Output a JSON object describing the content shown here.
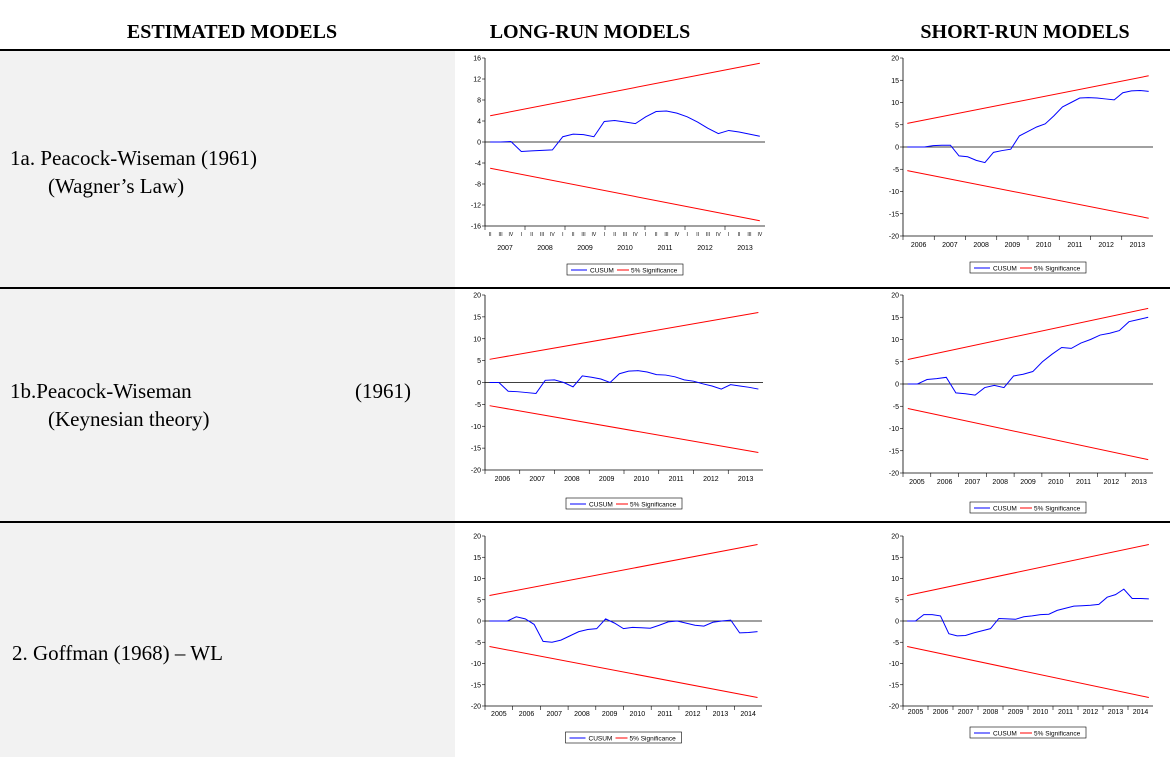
{
  "table": {
    "headers": [
      "ESTIMATED MODELS",
      "LONG-RUN MODELS",
      "SHORT-RUN MODELS"
    ],
    "rows": [
      {
        "label_lines": [
          "1a. Peacock-Wiseman (1961)",
          "(Wagner’s Law)"
        ],
        "long_run": {
          "type": "line",
          "ylim": [
            -16,
            16
          ],
          "yticks": [
            -16,
            -12,
            -8,
            -4,
            0,
            4,
            8,
            12,
            16
          ],
          "categories": [
            "2007",
            "2008",
            "2009",
            "2010",
            "2011",
            "2012",
            "2013"
          ],
          "quarter_labels": [
            "II",
            "III",
            "IV",
            "I",
            "II",
            "III",
            "IV",
            "I",
            "II",
            "III",
            "IV",
            "I",
            "II",
            "III",
            "IV",
            "I",
            "II",
            "III",
            "IV",
            "I",
            "II",
            "III",
            "IV",
            "I",
            "II",
            "III",
            "IV"
          ],
          "series": [
            {
              "name": "CUSUM",
              "color": "#0000ff",
              "values": [
                0,
                0,
                0.1,
                -1.8,
                -1.7,
                -1.6,
                -1.5,
                1,
                1.5,
                1.4,
                1,
                3.9,
                4.1,
                3.8,
                3.5,
                4.8,
                5.8,
                5.9,
                5.5,
                4.8,
                3.8,
                2.6,
                1.6,
                2.2,
                1.9,
                1.5,
                1.1
              ]
            },
            {
              "name": "5% Significance",
              "color": "#ff0000",
              "upper": [
                5,
                15
              ],
              "lower": [
                -5,
                -15
              ]
            }
          ]
        },
        "short_run": {
          "type": "line",
          "ylim": [
            -20,
            20
          ],
          "yticks": [
            -20,
            -15,
            -10,
            -5,
            0,
            5,
            10,
            15,
            20
          ],
          "categories": [
            "2006",
            "2007",
            "2008",
            "2009",
            "2010",
            "2011",
            "2012",
            "2013"
          ],
          "series": [
            {
              "name": "CUSUM",
              "color": "#0000ff",
              "values": [
                0,
                0,
                0,
                0.3,
                0.4,
                0.4,
                -2,
                -2.2,
                -3,
                -3.5,
                -1.2,
                -0.8,
                -0.5,
                2.5,
                3.5,
                4.5,
                5.2,
                7,
                9,
                10,
                11,
                11.1,
                11,
                10.8,
                10.6,
                12.2,
                12.6,
                12.7,
                12.5
              ]
            },
            {
              "name": "5% Significance",
              "color": "#ff0000",
              "upper": [
                5.3,
                16
              ],
              "lower": [
                -5.3,
                -16
              ]
            }
          ]
        }
      },
      {
        "label_lines": [
          "1b.Peacock-Wiseman",
          "(1961)",
          "(Keynesian theory)"
        ],
        "long_run": {
          "type": "line",
          "ylim": [
            -20,
            20
          ],
          "yticks": [
            -20,
            -15,
            -10,
            -5,
            0,
            5,
            10,
            15,
            20
          ],
          "categories": [
            "2006",
            "2007",
            "2008",
            "2009",
            "2010",
            "2011",
            "2012",
            "2013"
          ],
          "series": [
            {
              "name": "CUSUM",
              "color": "#0000ff",
              "values": [
                0,
                0,
                -2,
                -2.1,
                -2.3,
                -2.5,
                0.5,
                0.6,
                0,
                -1,
                1.5,
                1.2,
                0.8,
                0,
                2,
                2.6,
                2.7,
                2.4,
                1.8,
                1.7,
                1.3,
                0.6,
                0.3,
                -0.3,
                -0.8,
                -1.5,
                -0.5,
                -0.8,
                -1.1,
                -1.5
              ]
            },
            {
              "name": "5% Significance",
              "color": "#ff0000",
              "upper": [
                5.3,
                16
              ],
              "lower": [
                -5.3,
                -16
              ]
            }
          ]
        },
        "short_run": {
          "type": "line",
          "ylim": [
            -20,
            20
          ],
          "yticks": [
            -20,
            -15,
            -10,
            -5,
            0,
            5,
            10,
            15,
            20
          ],
          "categories": [
            "2005",
            "2006",
            "2007",
            "2008",
            "2009",
            "2010",
            "2011",
            "2012",
            "2013"
          ],
          "series": [
            {
              "name": "CUSUM",
              "color": "#0000ff",
              "values": [
                0,
                0,
                1,
                1.2,
                1.5,
                -2,
                -2.2,
                -2.5,
                -0.8,
                -0.3,
                -0.8,
                1.8,
                2.2,
                2.8,
                5,
                6.7,
                8.2,
                8,
                9.2,
                10,
                11,
                11.4,
                12,
                14,
                14.5,
                15
              ]
            },
            {
              "name": "5% Significance",
              "color": "#ff0000",
              "upper": [
                5.5,
                17
              ],
              "lower": [
                -5.5,
                -17
              ]
            }
          ]
        }
      },
      {
        "label_lines": [
          "2. Goffman (1968) – WL"
        ],
        "long_run": {
          "type": "line",
          "ylim": [
            -20,
            20
          ],
          "yticks": [
            -20,
            -15,
            -10,
            -5,
            0,
            5,
            10,
            15,
            20
          ],
          "categories": [
            "2005",
            "2006",
            "2007",
            "2008",
            "2009",
            "2010",
            "2011",
            "2012",
            "2013",
            "2014"
          ],
          "series": [
            {
              "name": "CUSUM",
              "color": "#0000ff",
              "values": [
                0,
                0,
                0,
                1,
                0.5,
                -0.8,
                -4.8,
                -5,
                -4.5,
                -3.5,
                -2.5,
                -2,
                -1.8,
                0.5,
                -0.5,
                -1.8,
                -1.5,
                -1.6,
                -1.7,
                -1,
                -0.2,
                0,
                -0.5,
                -1,
                -1.2,
                -0.3,
                0,
                0.2,
                -2.8,
                -2.7,
                -2.5
              ]
            },
            {
              "name": "5% Significance",
              "color": "#ff0000",
              "upper": [
                6,
                18
              ],
              "lower": [
                -6,
                -18
              ]
            }
          ]
        },
        "short_run": {
          "type": "line",
          "ylim": [
            -20,
            20
          ],
          "yticks": [
            -20,
            -15,
            -10,
            -5,
            0,
            5,
            10,
            15,
            20
          ],
          "categories": [
            "2005",
            "2006",
            "2007",
            "2008",
            "2009",
            "2010",
            "2011",
            "2012",
            "2013",
            "2014"
          ],
          "series": [
            {
              "name": "CUSUM",
              "color": "#0000ff",
              "values": [
                0,
                0,
                1.5,
                1.5,
                1.2,
                -3,
                -3.5,
                -3.4,
                -2.8,
                -2.3,
                -1.8,
                0.6,
                0.5,
                0.4,
                1,
                1.2,
                1.5,
                1.6,
                2.5,
                3,
                3.5,
                3.6,
                3.7,
                3.9,
                5.6,
                6.2,
                7.5,
                5.3,
                5.3,
                5.2
              ]
            },
            {
              "name": "5% Significance",
              "color": "#ff0000",
              "upper": [
                6,
                18
              ],
              "lower": [
                -6,
                -18
              ]
            }
          ]
        }
      }
    ]
  }
}
